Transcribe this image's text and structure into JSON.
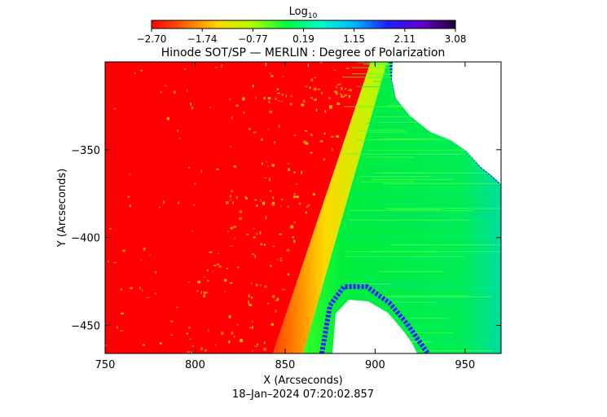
{
  "chart_data": {
    "type": "heatmap",
    "title": "Hinode SOT/SP — MERLIN : Degree of Polarization",
    "xlabel": "X (Arcseconds)",
    "ylabel": "Y (Arcseconds)",
    "timestamp": "18–Jan–2024 07:20:02.857",
    "xlim": [
      750,
      970
    ],
    "ylim": [
      -466,
      -300
    ],
    "x_ticks": [
      750,
      800,
      850,
      900,
      950
    ],
    "y_ticks": [
      -350,
      -400,
      -450
    ],
    "colorbar": {
      "label_base": "Log",
      "label_sub": "10",
      "min": -2.7,
      "max": 3.08,
      "ticks": [
        "−2.70",
        "−1.74",
        "−0.77",
        "0.19",
        "1.15",
        "2.11",
        "3.08"
      ],
      "colors": [
        "#ff0000",
        "#ff6a00",
        "#ffd800",
        "#aaff00",
        "#00ff3c",
        "#00ffc8",
        "#00b4ff",
        "#1e1eff",
        "#6400c8",
        "#1e003c"
      ]
    },
    "regions": [
      {
        "name": "disk",
        "approx_value": -2.7,
        "color": "#ff0000"
      },
      {
        "name": "limb",
        "approx_value": -1.2,
        "color": "#ffd800"
      },
      {
        "name": "off-limb",
        "approx_value": 0.4,
        "color": "#00ee40"
      },
      {
        "name": "no-data",
        "color": "#ffffff"
      }
    ]
  }
}
